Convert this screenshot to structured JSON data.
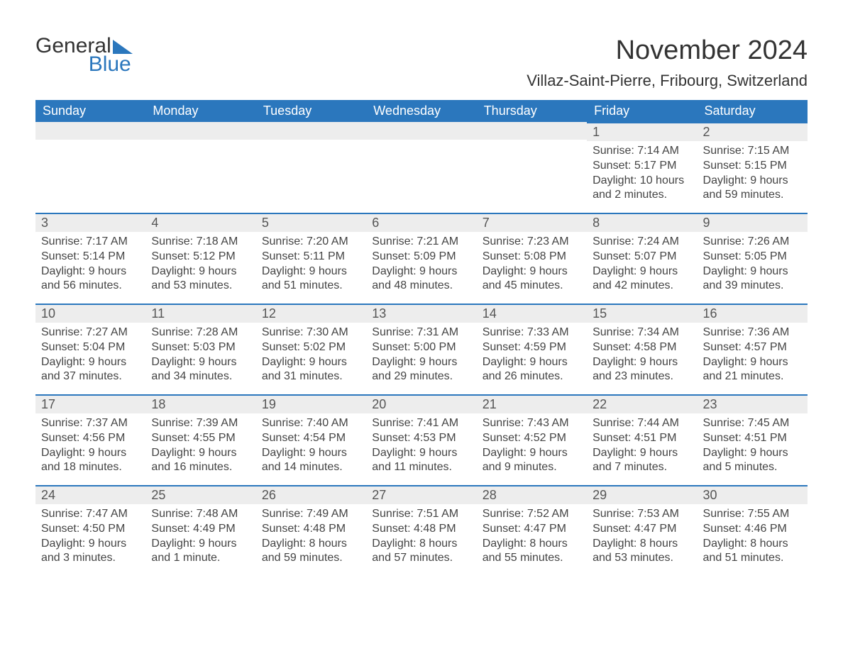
{
  "brand": {
    "word1": "General",
    "word2": "Blue",
    "logo_color": "#2b77bd",
    "text_color": "#333333"
  },
  "title": "November 2024",
  "location": "Villaz-Saint-Pierre, Fribourg, Switzerland",
  "colors": {
    "header_bg": "#2b77bd",
    "header_text": "#ffffff",
    "daynum_bg": "#ededed",
    "row_divider": "#2b77bd",
    "body_text": "#444444",
    "page_bg": "#ffffff"
  },
  "fonts": {
    "title_size_pt": 28,
    "location_size_pt": 16,
    "header_size_pt": 13,
    "daynum_size_pt": 13,
    "body_size_pt": 12
  },
  "weekdays": [
    "Sunday",
    "Monday",
    "Tuesday",
    "Wednesday",
    "Thursday",
    "Friday",
    "Saturday"
  ],
  "weeks": [
    [
      {
        "day": null
      },
      {
        "day": null
      },
      {
        "day": null
      },
      {
        "day": null
      },
      {
        "day": null
      },
      {
        "day": 1,
        "sunrise": "Sunrise: 7:14 AM",
        "sunset": "Sunset: 5:17 PM",
        "daylight1": "Daylight: 10 hours",
        "daylight2": "and 2 minutes."
      },
      {
        "day": 2,
        "sunrise": "Sunrise: 7:15 AM",
        "sunset": "Sunset: 5:15 PM",
        "daylight1": "Daylight: 9 hours",
        "daylight2": "and 59 minutes."
      }
    ],
    [
      {
        "day": 3,
        "sunrise": "Sunrise: 7:17 AM",
        "sunset": "Sunset: 5:14 PM",
        "daylight1": "Daylight: 9 hours",
        "daylight2": "and 56 minutes."
      },
      {
        "day": 4,
        "sunrise": "Sunrise: 7:18 AM",
        "sunset": "Sunset: 5:12 PM",
        "daylight1": "Daylight: 9 hours",
        "daylight2": "and 53 minutes."
      },
      {
        "day": 5,
        "sunrise": "Sunrise: 7:20 AM",
        "sunset": "Sunset: 5:11 PM",
        "daylight1": "Daylight: 9 hours",
        "daylight2": "and 51 minutes."
      },
      {
        "day": 6,
        "sunrise": "Sunrise: 7:21 AM",
        "sunset": "Sunset: 5:09 PM",
        "daylight1": "Daylight: 9 hours",
        "daylight2": "and 48 minutes."
      },
      {
        "day": 7,
        "sunrise": "Sunrise: 7:23 AM",
        "sunset": "Sunset: 5:08 PM",
        "daylight1": "Daylight: 9 hours",
        "daylight2": "and 45 minutes."
      },
      {
        "day": 8,
        "sunrise": "Sunrise: 7:24 AM",
        "sunset": "Sunset: 5:07 PM",
        "daylight1": "Daylight: 9 hours",
        "daylight2": "and 42 minutes."
      },
      {
        "day": 9,
        "sunrise": "Sunrise: 7:26 AM",
        "sunset": "Sunset: 5:05 PM",
        "daylight1": "Daylight: 9 hours",
        "daylight2": "and 39 minutes."
      }
    ],
    [
      {
        "day": 10,
        "sunrise": "Sunrise: 7:27 AM",
        "sunset": "Sunset: 5:04 PM",
        "daylight1": "Daylight: 9 hours",
        "daylight2": "and 37 minutes."
      },
      {
        "day": 11,
        "sunrise": "Sunrise: 7:28 AM",
        "sunset": "Sunset: 5:03 PM",
        "daylight1": "Daylight: 9 hours",
        "daylight2": "and 34 minutes."
      },
      {
        "day": 12,
        "sunrise": "Sunrise: 7:30 AM",
        "sunset": "Sunset: 5:02 PM",
        "daylight1": "Daylight: 9 hours",
        "daylight2": "and 31 minutes."
      },
      {
        "day": 13,
        "sunrise": "Sunrise: 7:31 AM",
        "sunset": "Sunset: 5:00 PM",
        "daylight1": "Daylight: 9 hours",
        "daylight2": "and 29 minutes."
      },
      {
        "day": 14,
        "sunrise": "Sunrise: 7:33 AM",
        "sunset": "Sunset: 4:59 PM",
        "daylight1": "Daylight: 9 hours",
        "daylight2": "and 26 minutes."
      },
      {
        "day": 15,
        "sunrise": "Sunrise: 7:34 AM",
        "sunset": "Sunset: 4:58 PM",
        "daylight1": "Daylight: 9 hours",
        "daylight2": "and 23 minutes."
      },
      {
        "day": 16,
        "sunrise": "Sunrise: 7:36 AM",
        "sunset": "Sunset: 4:57 PM",
        "daylight1": "Daylight: 9 hours",
        "daylight2": "and 21 minutes."
      }
    ],
    [
      {
        "day": 17,
        "sunrise": "Sunrise: 7:37 AM",
        "sunset": "Sunset: 4:56 PM",
        "daylight1": "Daylight: 9 hours",
        "daylight2": "and 18 minutes."
      },
      {
        "day": 18,
        "sunrise": "Sunrise: 7:39 AM",
        "sunset": "Sunset: 4:55 PM",
        "daylight1": "Daylight: 9 hours",
        "daylight2": "and 16 minutes."
      },
      {
        "day": 19,
        "sunrise": "Sunrise: 7:40 AM",
        "sunset": "Sunset: 4:54 PM",
        "daylight1": "Daylight: 9 hours",
        "daylight2": "and 14 minutes."
      },
      {
        "day": 20,
        "sunrise": "Sunrise: 7:41 AM",
        "sunset": "Sunset: 4:53 PM",
        "daylight1": "Daylight: 9 hours",
        "daylight2": "and 11 minutes."
      },
      {
        "day": 21,
        "sunrise": "Sunrise: 7:43 AM",
        "sunset": "Sunset: 4:52 PM",
        "daylight1": "Daylight: 9 hours",
        "daylight2": "and 9 minutes."
      },
      {
        "day": 22,
        "sunrise": "Sunrise: 7:44 AM",
        "sunset": "Sunset: 4:51 PM",
        "daylight1": "Daylight: 9 hours",
        "daylight2": "and 7 minutes."
      },
      {
        "day": 23,
        "sunrise": "Sunrise: 7:45 AM",
        "sunset": "Sunset: 4:51 PM",
        "daylight1": "Daylight: 9 hours",
        "daylight2": "and 5 minutes."
      }
    ],
    [
      {
        "day": 24,
        "sunrise": "Sunrise: 7:47 AM",
        "sunset": "Sunset: 4:50 PM",
        "daylight1": "Daylight: 9 hours",
        "daylight2": "and 3 minutes."
      },
      {
        "day": 25,
        "sunrise": "Sunrise: 7:48 AM",
        "sunset": "Sunset: 4:49 PM",
        "daylight1": "Daylight: 9 hours",
        "daylight2": "and 1 minute."
      },
      {
        "day": 26,
        "sunrise": "Sunrise: 7:49 AM",
        "sunset": "Sunset: 4:48 PM",
        "daylight1": "Daylight: 8 hours",
        "daylight2": "and 59 minutes."
      },
      {
        "day": 27,
        "sunrise": "Sunrise: 7:51 AM",
        "sunset": "Sunset: 4:48 PM",
        "daylight1": "Daylight: 8 hours",
        "daylight2": "and 57 minutes."
      },
      {
        "day": 28,
        "sunrise": "Sunrise: 7:52 AM",
        "sunset": "Sunset: 4:47 PM",
        "daylight1": "Daylight: 8 hours",
        "daylight2": "and 55 minutes."
      },
      {
        "day": 29,
        "sunrise": "Sunrise: 7:53 AM",
        "sunset": "Sunset: 4:47 PM",
        "daylight1": "Daylight: 8 hours",
        "daylight2": "and 53 minutes."
      },
      {
        "day": 30,
        "sunrise": "Sunrise: 7:55 AM",
        "sunset": "Sunset: 4:46 PM",
        "daylight1": "Daylight: 8 hours",
        "daylight2": "and 51 minutes."
      }
    ]
  ]
}
